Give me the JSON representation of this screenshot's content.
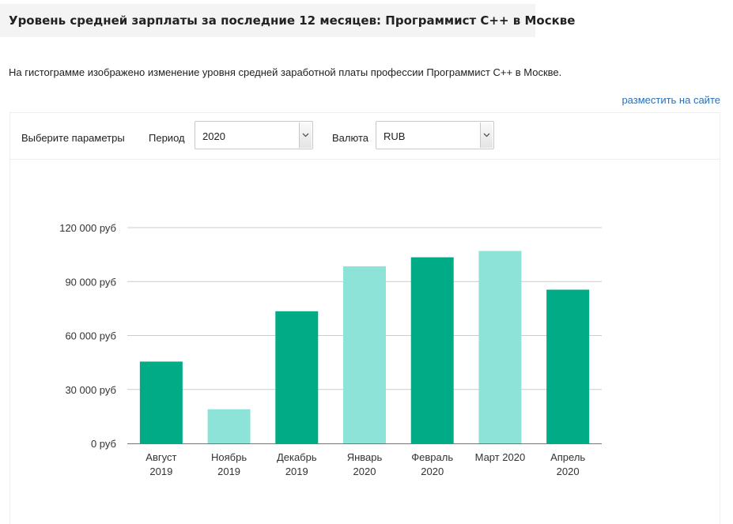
{
  "header": {
    "title": "Уровень средней зарплаты за последние 12 месяцев: Программист C++ в Москве"
  },
  "description": "На гистограмме изображено изменение уровня средней заработной платы профессии Программист C++ в Москве.",
  "embed_link": "разместить на сайте",
  "params": {
    "heading": "Выберите параметры",
    "period_label": "Период",
    "period_value": "2020",
    "currency_label": "Валюта",
    "currency_value": "RUB"
  },
  "icons": {
    "select_arrow": "chevron-down-icon"
  },
  "colors": {
    "bar_dark": "#00ab86",
    "bar_light": "#8ee3d8",
    "grid": "#cccccc",
    "axis": "#3a87c7",
    "link": "#2a6fb8"
  },
  "chart_data": {
    "type": "bar",
    "categories": [
      [
        "Август",
        "2019"
      ],
      [
        "Ноябрь",
        "2019"
      ],
      [
        "Декабрь",
        "2019"
      ],
      [
        "Январь",
        "2020"
      ],
      [
        "Февраль",
        "2020"
      ],
      [
        "Март 2020"
      ],
      [
        "Апрель",
        "2020"
      ]
    ],
    "values": [
      45500,
      19000,
      73500,
      98500,
      103500,
      107000,
      85500
    ],
    "bar_shades": [
      "dark",
      "light",
      "dark",
      "light",
      "dark",
      "light",
      "dark"
    ],
    "ylim": [
      0,
      120000
    ],
    "yticks": [
      0,
      30000,
      60000,
      90000,
      120000
    ],
    "ytick_labels": [
      "0 руб",
      "30 000 руб",
      "60 000 руб",
      "90 000 руб",
      "120 000 руб"
    ],
    "grid": true,
    "title": "",
    "xlabel": "",
    "ylabel": ""
  }
}
